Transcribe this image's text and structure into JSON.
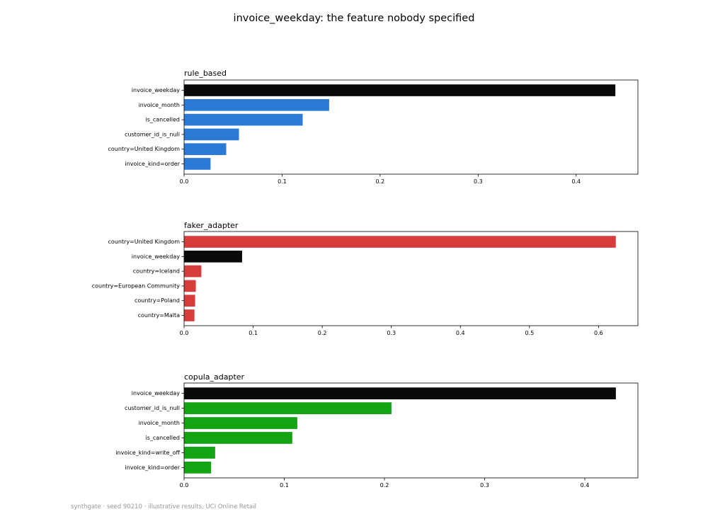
{
  "figure": {
    "title": "invoice_weekday: the feature nobody specified",
    "footer": "synthgate · seed 90210 · illustrative results, UCI Online Retail"
  },
  "colors": {
    "highlight": "#0a0a0a",
    "rule_based": "#2a7ad6",
    "faker_adapter": "#d63c3c",
    "copula_adapter": "#12a412"
  },
  "chart_data": [
    {
      "type": "bar",
      "orientation": "horizontal",
      "title": "rule_based",
      "categories": [
        "invoice_weekday",
        "invoice_month",
        "is_cancelled",
        "customer_id_is_null",
        "country=United Kingdom",
        "invoice_kind=order"
      ],
      "values": [
        0.44,
        0.148,
        0.121,
        0.056,
        0.043,
        0.027
      ],
      "highlight": "invoice_weekday",
      "xlim": [
        0,
        0.463
      ],
      "xticks": [
        0,
        0.1,
        0.2,
        0.3,
        0.4
      ],
      "xtick_labels": [
        "0.0",
        "0.1",
        "0.2",
        "0.3",
        "0.4"
      ],
      "color_key": "rule_based",
      "xlabel": "",
      "ylabel": ""
    },
    {
      "type": "bar",
      "orientation": "horizontal",
      "title": "faker_adapter",
      "categories": [
        "country=United Kingdom",
        "invoice_weekday",
        "country=Iceland",
        "country=European Community",
        "country=Poland",
        "country=Malta"
      ],
      "values": [
        0.625,
        0.084,
        0.025,
        0.017,
        0.016,
        0.015
      ],
      "highlight": "invoice_weekday",
      "xlim": [
        0,
        0.657
      ],
      "xticks": [
        0,
        0.1,
        0.2,
        0.3,
        0.4,
        0.5,
        0.6
      ],
      "xtick_labels": [
        "0.0",
        "0.1",
        "0.2",
        "0.3",
        "0.4",
        "0.5",
        "0.6"
      ],
      "color_key": "faker_adapter",
      "xlabel": "",
      "ylabel": ""
    },
    {
      "type": "bar",
      "orientation": "horizontal",
      "title": "copula_adapter",
      "categories": [
        "invoice_weekday",
        "customer_id_is_null",
        "invoice_month",
        "is_cancelled",
        "invoice_kind=write_off",
        "invoice_kind=order"
      ],
      "values": [
        0.431,
        0.207,
        0.113,
        0.108,
        0.031,
        0.027
      ],
      "highlight": "invoice_weekday",
      "xlim": [
        0,
        0.453
      ],
      "xticks": [
        0,
        0.1,
        0.2,
        0.3,
        0.4
      ],
      "xtick_labels": [
        "0.0",
        "0.1",
        "0.2",
        "0.3",
        "0.4"
      ],
      "color_key": "copula_adapter",
      "xlabel": "",
      "ylabel": ""
    }
  ]
}
